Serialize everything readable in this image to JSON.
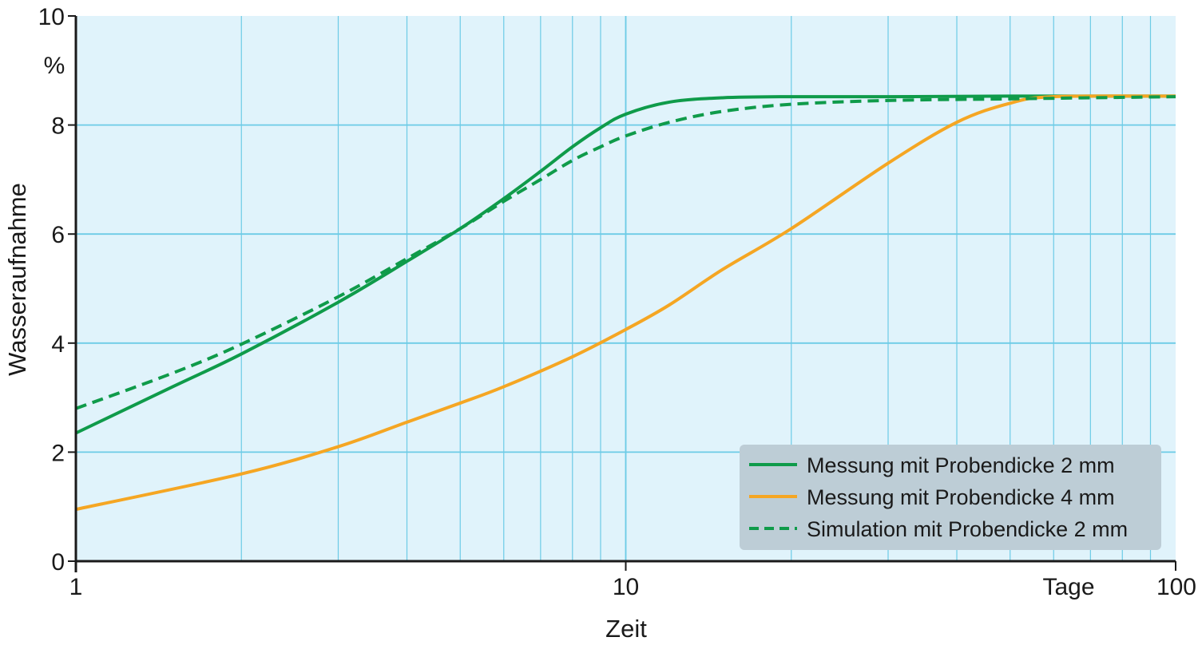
{
  "chart_data": {
    "type": "line",
    "xlabel": "Zeit",
    "ylabel": "Wasseraufnahme",
    "y_unit_label": "%",
    "x_unit_label": "Tage",
    "x_scale": "log",
    "xlim": [
      1,
      100
    ],
    "ylim": [
      0,
      10
    ],
    "x_ticks": [
      {
        "value": 1,
        "label": "1"
      },
      {
        "value": 10,
        "label": "10"
      },
      {
        "value": 100,
        "label": "100"
      }
    ],
    "y_ticks": [
      {
        "value": 0,
        "label": "0"
      },
      {
        "value": 2,
        "label": "2"
      },
      {
        "value": 4,
        "label": "4"
      },
      {
        "value": 6,
        "label": "6"
      },
      {
        "value": 8,
        "label": "8"
      },
      {
        "value": 10,
        "label": "10"
      }
    ],
    "grid": true,
    "legend_position": "bottom-right",
    "colors": {
      "plot_background": "#e0f3fb",
      "grid": "#6ccbe6",
      "legend_background": "#bdcdd6",
      "green": "#0f9b4a",
      "orange": "#f5a623"
    },
    "series": [
      {
        "name": "Messung mit Probendicke 2 mm",
        "color": "#0f9b4a",
        "style": "solid",
        "x": [
          1,
          1.5,
          2,
          3,
          4,
          5,
          6,
          7,
          8,
          9,
          10,
          12,
          15,
          20,
          30,
          50,
          100
        ],
        "y": [
          2.35,
          3.2,
          3.8,
          4.75,
          5.5,
          6.1,
          6.65,
          7.15,
          7.6,
          7.95,
          8.2,
          8.42,
          8.5,
          8.52,
          8.52,
          8.53,
          8.53
        ]
      },
      {
        "name": "Messung mit Probendicke 4 mm",
        "color": "#f5a623",
        "style": "solid",
        "x": [
          1,
          2,
          3,
          4,
          5,
          6,
          8,
          10,
          12,
          15,
          20,
          30,
          40,
          50,
          60,
          100
        ],
        "y": [
          0.95,
          1.6,
          2.1,
          2.55,
          2.9,
          3.2,
          3.75,
          4.25,
          4.7,
          5.35,
          6.1,
          7.3,
          8.05,
          8.4,
          8.52,
          8.53
        ]
      },
      {
        "name": "Simulation mit Probendicke 2 mm",
        "color": "#0f9b4a",
        "style": "dashed",
        "x": [
          1,
          1.5,
          2,
          3,
          4,
          5,
          6,
          7,
          8,
          9,
          10,
          12,
          15,
          20,
          30,
          50,
          100
        ],
        "y": [
          2.8,
          3.45,
          3.98,
          4.85,
          5.55,
          6.1,
          6.6,
          7.0,
          7.35,
          7.6,
          7.8,
          8.05,
          8.25,
          8.38,
          8.45,
          8.48,
          8.52
        ]
      }
    ]
  }
}
